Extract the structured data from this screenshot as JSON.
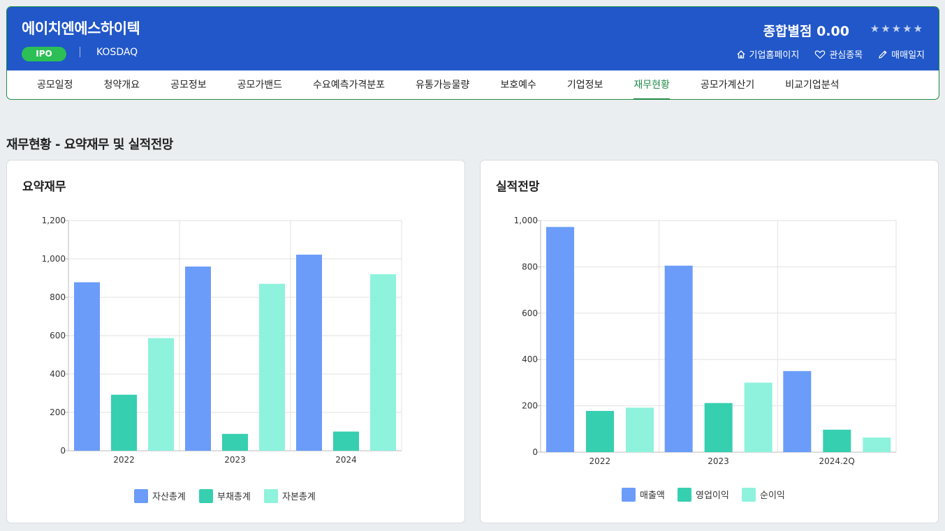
{
  "header": {
    "company_name": "에이치엔에스하이텍",
    "ipo_badge": "IPO",
    "market": "KOSDAQ",
    "score_label": "종합별점 0.00",
    "stars": "★★★★★",
    "links": [
      {
        "label": "기업홈페이지",
        "icon": "home-icon"
      },
      {
        "label": "관심종목",
        "icon": "heart-icon"
      },
      {
        "label": "매매일지",
        "icon": "pencil-icon"
      }
    ]
  },
  "tabs": [
    "공모일정",
    "청약개요",
    "공모정보",
    "공모가밴드",
    "수요예측가격분포",
    "유통가능물량",
    "보호예수",
    "기업정보",
    "재무현황",
    "공모가계산기",
    "비교기업분석"
  ],
  "active_tab": "재무현황",
  "section_title": "재무현황 - 요약재무 및 실적전망",
  "colors": {
    "header_bg": "#2157c8",
    "accent_green": "#1f8a45",
    "badge_green": "#2cbf55",
    "series_1": "#6b9cfa",
    "series_2": "#36cfb0",
    "series_3": "#8ef2dd"
  },
  "chart_data": [
    {
      "title": "요약재무",
      "type": "bar",
      "categories": [
        "2022",
        "2023",
        "2024"
      ],
      "series": [
        {
          "name": "자산총계",
          "values": [
            878,
            960,
            1022
          ],
          "color": "#6b9cfa"
        },
        {
          "name": "부채총계",
          "values": [
            292,
            88,
            100
          ],
          "color": "#36cfb0"
        },
        {
          "name": "자본총계",
          "values": [
            587,
            870,
            920
          ],
          "color": "#8ef2dd"
        }
      ],
      "ylim": [
        0,
        1200
      ],
      "yticks": [
        0,
        200,
        400,
        600,
        800,
        1000,
        1200
      ],
      "ytick_labels": [
        "0",
        "200",
        "400",
        "600",
        "800",
        "1,000",
        "1,200"
      ],
      "grid": true,
      "legend": "bottom-center"
    },
    {
      "title": "실적전망",
      "type": "bar",
      "categories": [
        "2022",
        "2023",
        "2024.2Q"
      ],
      "series": [
        {
          "name": "매출액",
          "values": [
            972,
            805,
            350
          ],
          "color": "#6b9cfa"
        },
        {
          "name": "영업이익",
          "values": [
            178,
            212,
            97
          ],
          "color": "#36cfb0"
        },
        {
          "name": "순이익",
          "values": [
            192,
            300,
            63
          ],
          "color": "#8ef2dd"
        }
      ],
      "ylim": [
        0,
        1000
      ],
      "yticks": [
        0,
        200,
        400,
        600,
        800,
        1000
      ],
      "ytick_labels": [
        "0",
        "200",
        "400",
        "600",
        "800",
        "1,000"
      ],
      "grid": true,
      "legend": "bottom-center"
    }
  ]
}
